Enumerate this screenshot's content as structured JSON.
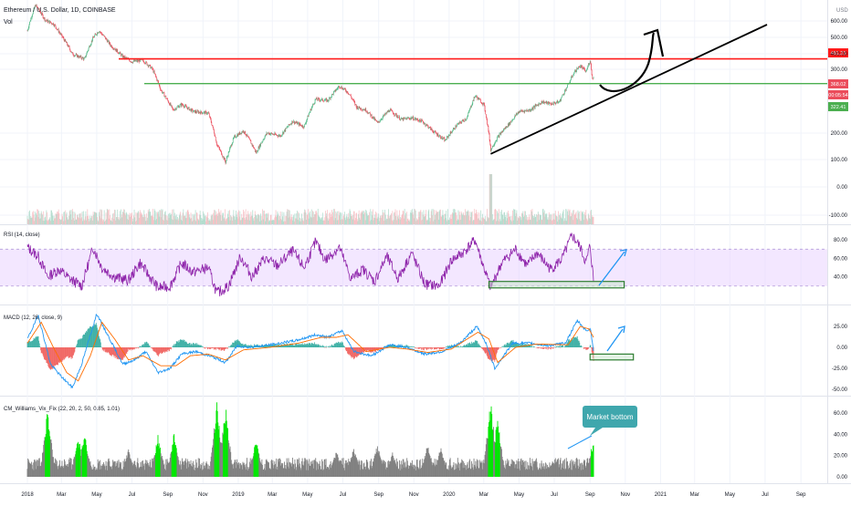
{
  "header": {
    "symbol_title": "Ethereum / U.S. Dollar, 1D, COINBASE",
    "volume_label": "Vol",
    "currency": "USD"
  },
  "colors": {
    "background": "#ffffff",
    "grid": "#f0f3fa",
    "candle_up": "#53b987",
    "candle_down": "#eb4d5c",
    "resistance": "#ff1a1a",
    "support": "#4caf50",
    "trendline": "#000000",
    "rsi_line": "#8e24aa",
    "rsi_band": "#e9d4ff",
    "macd_line": "#2196f3",
    "signal_line": "#ff6d00",
    "hist_up": "#26a69a",
    "hist_down": "#ef5350",
    "wvf_gray": "#808080",
    "wvf_green": "#00e600",
    "callout_fill": "#3fa7ad",
    "arrow_blue": "#2196f3"
  },
  "chart_data": [
    {
      "id": "price",
      "type": "candlestick",
      "scale": "log",
      "title": "Ethereum / U.S. Dollar, 1D, COINBASE",
      "y_axis_ticks": [
        "600.00",
        "500.00",
        "400.00",
        "300.00",
        "200.00",
        "100.00",
        "0.00",
        "-100.00"
      ],
      "price_badges": [
        {
          "label": "481.23",
          "value": 481.23,
          "color": "#ff1a1a"
        },
        {
          "label": "368.02",
          "value": 368.02,
          "color": "#eb4d5c"
        },
        {
          "label": "00:05:54",
          "value": 350,
          "color": "#eb4d5c"
        },
        {
          "label": "322.41",
          "value": 322.41,
          "color": "#4caf50"
        }
      ],
      "horizontal_lines": [
        {
          "name": "resistance",
          "value": 481.23,
          "color": "#ff1a1a"
        },
        {
          "name": "support",
          "value": 322.41,
          "color": "#4caf50"
        }
      ],
      "trendline": {
        "from": [
          "2020-03-13",
          100
        ],
        "to": [
          "2021-08-15",
          600
        ]
      },
      "projection_arrow": "up from ~350 toward ~600 by 2020-10",
      "weekly_closes": [
        [
          "2018-01-01",
          760
        ],
        [
          "2018-01-15",
          1150
        ],
        [
          "2018-02-01",
          900
        ],
        [
          "2018-02-15",
          850
        ],
        [
          "2018-03-01",
          700
        ],
        [
          "2018-03-20",
          520
        ],
        [
          "2018-04-10",
          480
        ],
        [
          "2018-04-25",
          680
        ],
        [
          "2018-05-05",
          760
        ],
        [
          "2018-05-25",
          600
        ],
        [
          "2018-06-15",
          500
        ],
        [
          "2018-07-01",
          460
        ],
        [
          "2018-07-20",
          470
        ],
        [
          "2018-08-05",
          410
        ],
        [
          "2018-08-20",
          290
        ],
        [
          "2018-09-10",
          210
        ],
        [
          "2018-09-25",
          230
        ],
        [
          "2018-10-15",
          205
        ],
        [
          "2018-11-10",
          200
        ],
        [
          "2018-11-25",
          120
        ],
        [
          "2018-12-10",
          90
        ],
        [
          "2018-12-25",
          135
        ],
        [
          "2019-01-10",
          150
        ],
        [
          "2019-02-01",
          105
        ],
        [
          "2019-02-20",
          145
        ],
        [
          "2019-03-15",
          138
        ],
        [
          "2019-04-05",
          175
        ],
        [
          "2019-04-25",
          160
        ],
        [
          "2019-05-15",
          250
        ],
        [
          "2019-06-05",
          245
        ],
        [
          "2019-06-25",
          310
        ],
        [
          "2019-07-10",
          280
        ],
        [
          "2019-07-25",
          220
        ],
        [
          "2019-08-10",
          210
        ],
        [
          "2019-08-30",
          170
        ],
        [
          "2019-09-20",
          210
        ],
        [
          "2019-10-10",
          180
        ],
        [
          "2019-10-28",
          185
        ],
        [
          "2019-11-15",
          175
        ],
        [
          "2019-12-05",
          148
        ],
        [
          "2019-12-25",
          128
        ],
        [
          "2020-01-15",
          165
        ],
        [
          "2020-02-01",
          185
        ],
        [
          "2020-02-15",
          265
        ],
        [
          "2020-03-01",
          230
        ],
        [
          "2020-03-13",
          110
        ],
        [
          "2020-03-25",
          135
        ],
        [
          "2020-04-15",
          170
        ],
        [
          "2020-05-01",
          205
        ],
        [
          "2020-05-20",
          210
        ],
        [
          "2020-06-10",
          240
        ],
        [
          "2020-06-25",
          232
        ],
        [
          "2020-07-10",
          240
        ],
        [
          "2020-07-25",
          315
        ],
        [
          "2020-08-05",
          390
        ],
        [
          "2020-08-15",
          430
        ],
        [
          "2020-08-25",
          390
        ],
        [
          "2020-09-01",
          470
        ],
        [
          "2020-09-05",
          350
        ],
        [
          "2020-09-07",
          352
        ]
      ]
    },
    {
      "id": "volume",
      "type": "bar",
      "label": "Vol",
      "note": "relative daily volume bars under price, spike at 2020-03-13"
    },
    {
      "id": "rsi",
      "type": "line",
      "label": "RSI (14, close)",
      "y_axis_ticks": [
        "80.00",
        "60.00",
        "40.00"
      ],
      "band": [
        30,
        70
      ],
      "weekly": [
        [
          "2018-01-01",
          72
        ],
        [
          "2018-01-20",
          62
        ],
        [
          "2018-02-05",
          40
        ],
        [
          "2018-02-25",
          48
        ],
        [
          "2018-03-15",
          38
        ],
        [
          "2018-04-05",
          30
        ],
        [
          "2018-04-25",
          72
        ],
        [
          "2018-05-10",
          50
        ],
        [
          "2018-06-01",
          40
        ],
        [
          "2018-06-25",
          36
        ],
        [
          "2018-07-15",
          55
        ],
        [
          "2018-08-01",
          40
        ],
        [
          "2018-08-15",
          28
        ],
        [
          "2018-09-05",
          30
        ],
        [
          "2018-09-25",
          55
        ],
        [
          "2018-10-15",
          45
        ],
        [
          "2018-11-10",
          50
        ],
        [
          "2018-11-25",
          22
        ],
        [
          "2018-12-15",
          30
        ],
        [
          "2019-01-05",
          62
        ],
        [
          "2019-01-25",
          40
        ],
        [
          "2019-02-15",
          60
        ],
        [
          "2019-03-10",
          52
        ],
        [
          "2019-04-05",
          68
        ],
        [
          "2019-04-25",
          50
        ],
        [
          "2019-05-15",
          78
        ],
        [
          "2019-06-01",
          58
        ],
        [
          "2019-06-25",
          72
        ],
        [
          "2019-07-15",
          38
        ],
        [
          "2019-08-05",
          48
        ],
        [
          "2019-08-25",
          35
        ],
        [
          "2019-09-15",
          62
        ],
        [
          "2019-10-05",
          38
        ],
        [
          "2019-10-28",
          66
        ],
        [
          "2019-11-20",
          32
        ],
        [
          "2019-12-15",
          30
        ],
        [
          "2020-01-05",
          58
        ],
        [
          "2020-01-25",
          66
        ],
        [
          "2020-02-15",
          80
        ],
        [
          "2020-03-01",
          50
        ],
        [
          "2020-03-13",
          28
        ],
        [
          "2020-04-01",
          55
        ],
        [
          "2020-04-25",
          70
        ],
        [
          "2020-05-15",
          52
        ],
        [
          "2020-06-01",
          66
        ],
        [
          "2020-06-25",
          48
        ],
        [
          "2020-07-15",
          60
        ],
        [
          "2020-08-01",
          85
        ],
        [
          "2020-08-15",
          72
        ],
        [
          "2020-08-25",
          55
        ],
        [
          "2020-09-01",
          74
        ],
        [
          "2020-09-07",
          36
        ]
      ],
      "highlight_box": {
        "from": [
          "2020-03-10",
          28
        ],
        "to": [
          "2020-10-30",
          35
        ]
      },
      "projection_arrow": "up from ~36 to ~72"
    },
    {
      "id": "macd",
      "type": "line",
      "label": "MACD (12, 26, close, 9)",
      "y_axis_ticks": [
        "25.00",
        "0.00",
        "-25.00",
        "-50.00"
      ],
      "series": [
        {
          "name": "MACD",
          "weekly": [
            [
              "2018-01-01",
              10
            ],
            [
              "2018-01-20",
              38
            ],
            [
              "2018-02-10",
              -20
            ],
            [
              "2018-03-01",
              -35
            ],
            [
              "2018-03-20",
              -48
            ],
            [
              "2018-04-05",
              -20
            ],
            [
              "2018-05-01",
              40
            ],
            [
              "2018-05-25",
              8
            ],
            [
              "2018-06-15",
              -20
            ],
            [
              "2018-07-05",
              -15
            ],
            [
              "2018-07-25",
              -5
            ],
            [
              "2018-08-15",
              -30
            ],
            [
              "2018-09-05",
              -25
            ],
            [
              "2018-09-25",
              -8
            ],
            [
              "2018-10-20",
              -5
            ],
            [
              "2018-11-20",
              -12
            ],
            [
              "2018-12-10",
              -18
            ],
            [
              "2018-12-30",
              2
            ],
            [
              "2019-01-20",
              0
            ],
            [
              "2019-02-25",
              3
            ],
            [
              "2019-04-10",
              8
            ],
            [
              "2019-05-15",
              15
            ],
            [
              "2019-06-05",
              12
            ],
            [
              "2019-06-30",
              20
            ],
            [
              "2019-07-20",
              -5
            ],
            [
              "2019-08-20",
              -10
            ],
            [
              "2019-09-20",
              3
            ],
            [
              "2019-10-20",
              0
            ],
            [
              "2019-11-20",
              -8
            ],
            [
              "2019-12-20",
              -5
            ],
            [
              "2020-01-20",
              5
            ],
            [
              "2020-02-18",
              25
            ],
            [
              "2020-03-05",
              5
            ],
            [
              "2020-03-20",
              -25
            ],
            [
              "2020-04-20",
              5
            ],
            [
              "2020-05-20",
              5
            ],
            [
              "2020-06-20",
              2
            ],
            [
              "2020-07-20",
              5
            ],
            [
              "2020-08-10",
              32
            ],
            [
              "2020-08-25",
              20
            ],
            [
              "2020-09-02",
              22
            ],
            [
              "2020-09-07",
              -5
            ]
          ]
        },
        {
          "name": "Signal",
          "weekly": [
            [
              "2018-01-01",
              5
            ],
            [
              "2018-01-25",
              30
            ],
            [
              "2018-02-15",
              0
            ],
            [
              "2018-03-10",
              -30
            ],
            [
              "2018-03-30",
              -40
            ],
            [
              "2018-04-20",
              -10
            ],
            [
              "2018-05-10",
              30
            ],
            [
              "2018-06-01",
              10
            ],
            [
              "2018-06-25",
              -15
            ],
            [
              "2018-07-20",
              -10
            ],
            [
              "2018-08-20",
              -22
            ],
            [
              "2018-09-15",
              -22
            ],
            [
              "2018-10-10",
              -10
            ],
            [
              "2018-11-10",
              -8
            ],
            [
              "2018-12-10",
              -15
            ],
            [
              "2019-01-10",
              -3
            ],
            [
              "2019-02-25",
              0
            ],
            [
              "2019-04-15",
              5
            ],
            [
              "2019-05-25",
              12
            ],
            [
              "2019-06-20",
              12
            ],
            [
              "2019-07-10",
              15
            ],
            [
              "2019-08-10",
              -5
            ],
            [
              "2019-09-20",
              0
            ],
            [
              "2019-10-20",
              -2
            ],
            [
              "2019-11-25",
              -6
            ],
            [
              "2020-01-05",
              -2
            ],
            [
              "2020-02-20",
              18
            ],
            [
              "2020-03-10",
              10
            ],
            [
              "2020-03-25",
              -18
            ],
            [
              "2020-04-25",
              0
            ],
            [
              "2020-06-01",
              4
            ],
            [
              "2020-07-25",
              3
            ],
            [
              "2020-08-15",
              25
            ],
            [
              "2020-08-30",
              22
            ],
            [
              "2020-09-07",
              12
            ]
          ]
        }
      ],
      "highlight_box": {
        "from": [
          "2020-09-01",
          -8
        ],
        "to": [
          "2020-11-15",
          -15
        ]
      },
      "projection_arrow": "up from ~-5 to ~+18"
    },
    {
      "id": "wvf",
      "type": "bar",
      "label": "CM_Williams_Vix_Fix (22, 20, 2, 50, 0.85, 1.01)",
      "y_axis_ticks": [
        "60.00",
        "40.00",
        "20.00",
        "0.00"
      ],
      "annotation": "Market bottom",
      "peaks": [
        [
          "2018-02-05",
          62
        ],
        [
          "2018-03-30",
          38
        ],
        [
          "2018-04-10",
          40
        ],
        [
          "2018-06-25",
          25
        ],
        [
          "2018-08-15",
          38
        ],
        [
          "2018-09-12",
          40
        ],
        [
          "2018-11-25",
          68
        ],
        [
          "2018-12-10",
          65
        ],
        [
          "2019-02-01",
          35
        ],
        [
          "2019-06-20",
          25
        ],
        [
          "2019-07-20",
          28
        ],
        [
          "2019-08-30",
          30
        ],
        [
          "2019-09-25",
          22
        ],
        [
          "2019-11-25",
          30
        ],
        [
          "2019-12-18",
          28
        ],
        [
          "2020-03-13",
          70
        ],
        [
          "2020-03-25",
          55
        ],
        [
          "2020-06-28",
          15
        ],
        [
          "2020-09-07",
          35
        ]
      ]
    }
  ],
  "x_axis": {
    "labels": [
      "2018",
      "Mar",
      "May",
      "Jul",
      "Sep",
      "Nov",
      "2019",
      "Mar",
      "May",
      "Jul",
      "Sep",
      "Nov",
      "2020",
      "Mar",
      "May",
      "Jul",
      "Sep",
      "Nov",
      "2021",
      "Mar",
      "May",
      "Jul",
      "Sep"
    ],
    "dates": [
      "2018-01-01",
      "2018-03-01",
      "2018-05-01",
      "2018-07-01",
      "2018-09-01",
      "2018-11-01",
      "2019-01-01",
      "2019-03-01",
      "2019-05-01",
      "2019-07-01",
      "2019-09-01",
      "2019-11-01",
      "2020-01-01",
      "2020-03-01",
      "2020-05-01",
      "2020-07-01",
      "2020-09-01",
      "2020-11-01",
      "2021-01-01",
      "2021-03-01",
      "2021-05-01",
      "2021-07-01",
      "2021-09-01"
    ]
  }
}
